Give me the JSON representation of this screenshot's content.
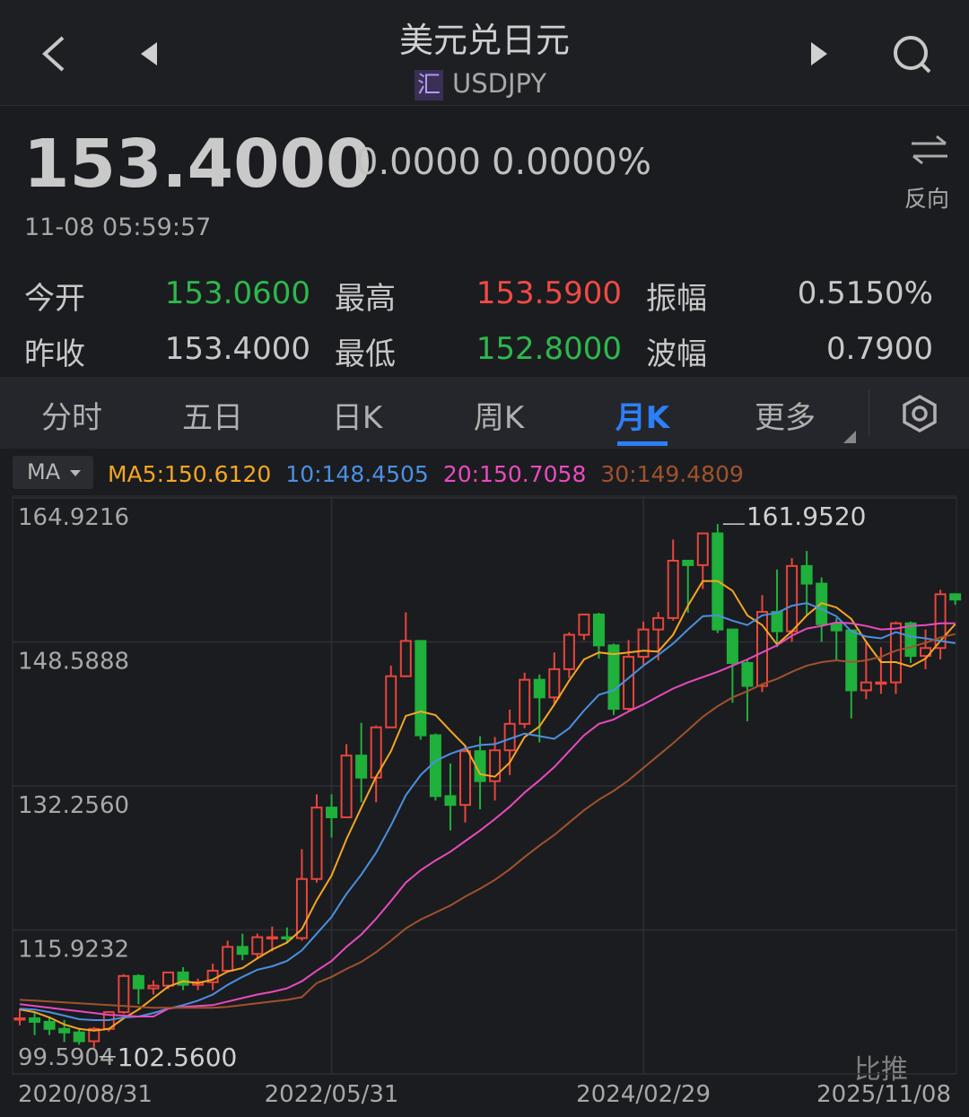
{
  "header": {
    "title": "美元兑日元",
    "badge": "汇",
    "symbol": "USDJPY"
  },
  "quote": {
    "price": "153.4000",
    "change": "0.0000",
    "change_pct": "0.0000%",
    "time": "11-08 05:59:57",
    "reverse": "反向"
  },
  "stats": [
    {
      "label": "今开",
      "value": "153.0600"
    },
    {
      "label": "最高",
      "value": "153.5900"
    },
    {
      "label": "振幅",
      "value": "0.5150%"
    },
    {
      "label": "昨收",
      "value": "153.4000"
    },
    {
      "label": "最低",
      "value": "152.8000"
    },
    {
      "label": "波幅",
      "value": "0.7900"
    }
  ],
  "tabs": [
    "分时",
    "五日",
    "日K",
    "周K",
    "月K",
    "更多"
  ],
  "watermark": "比推",
  "chart_data": {
    "type": "candlestick",
    "indicator": "MA",
    "categories": [
      "2020/08/31",
      null,
      null,
      null,
      null,
      null,
      null,
      null,
      null,
      null,
      null,
      null,
      null,
      null,
      null,
      null,
      null,
      null,
      null,
      null,
      null,
      "2022/05/31",
      null,
      null,
      null,
      null,
      null,
      null,
      null,
      null,
      null,
      null,
      null,
      null,
      null,
      null,
      null,
      null,
      null,
      null,
      null,
      null,
      "2024/02/29",
      null,
      null,
      null,
      null,
      null,
      null,
      null,
      null,
      null,
      null,
      null,
      null,
      null,
      null,
      null,
      null,
      null,
      null,
      null,
      null,
      "2025/11/08"
    ],
    "open": [
      105.8,
      105.9,
      105.5,
      104.7,
      104.3,
      103.3,
      104.7,
      106.6,
      110.7,
      109.3,
      109.6,
      111.1,
      109.7,
      110.0,
      111.3,
      114.0,
      113.2,
      115.1,
      115.1,
      115.0,
      121.7,
      129.8,
      128.7,
      135.7,
      133.2,
      138.9,
      144.7,
      148.7,
      138.0,
      131.1,
      130.1,
      136.2,
      132.8,
      136.3,
      139.3,
      144.3,
      142.3,
      145.5,
      149.4,
      151.7,
      148.2,
      141.0,
      146.9,
      150.0,
      151.3,
      157.8,
      157.3,
      160.9,
      150.0,
      146.2,
      143.6,
      152.0,
      149.8,
      157.2,
      155.2,
      150.6,
      149.9,
      143.1,
      144.0,
      144.0,
      150.7,
      147.0,
      147.9,
      154.0
    ],
    "high": [
      107.0,
      106.5,
      106.1,
      105.7,
      104.8,
      104.9,
      106.7,
      110.9,
      110.9,
      110.2,
      111.1,
      111.7,
      110.4,
      112.1,
      114.7,
      115.5,
      115.5,
      116.3,
      116.2,
      125.1,
      131.3,
      131.3,
      137.0,
      139.4,
      139.1,
      145.9,
      151.95,
      148.8,
      138.2,
      134.8,
      136.9,
      137.9,
      137.8,
      140.9,
      145.1,
      144.9,
      147.4,
      149.7,
      151.7,
      151.9,
      148.4,
      148.8,
      150.9,
      151.97,
      160.2,
      157.9,
      161.0,
      161.952,
      150.0,
      146.5,
      153.9,
      156.8,
      158.1,
      158.9,
      155.9,
      151.3,
      150.0,
      148.7,
      148.0,
      150.9,
      150.9,
      150.0,
      154.5,
      154.1
    ],
    "low": [
      105.1,
      104.0,
      104.0,
      103.2,
      102.9,
      102.56,
      104.4,
      106.4,
      107.5,
      108.6,
      109.2,
      109.1,
      109.1,
      109.1,
      111.3,
      112.5,
      112.6,
      113.5,
      114.4,
      114.7,
      121.3,
      126.4,
      128.7,
      130.4,
      130.4,
      138.9,
      144.6,
      137.5,
      130.6,
      127.2,
      128.1,
      129.6,
      130.6,
      133.5,
      138.8,
      137.2,
      141.5,
      144.5,
      148.8,
      146.7,
      140.3,
      140.8,
      146.0,
      146.5,
      151.0,
      151.9,
      154.6,
      149.6,
      141.7,
      139.6,
      142.9,
      148.0,
      148.6,
      151.7,
      148.6,
      146.5,
      139.9,
      142.1,
      142.7,
      142.7,
      146.2,
      145.5,
      146.6,
      152.8
    ],
    "close": [
      105.9,
      105.5,
      104.7,
      104.3,
      103.3,
      104.7,
      106.6,
      110.7,
      109.3,
      109.6,
      111.1,
      109.7,
      110.0,
      111.3,
      114.0,
      113.2,
      115.1,
      115.1,
      115.0,
      121.7,
      129.8,
      128.7,
      135.7,
      133.2,
      138.9,
      144.7,
      148.7,
      138.0,
      131.1,
      130.1,
      136.2,
      132.8,
      136.3,
      139.3,
      144.3,
      142.3,
      145.5,
      149.4,
      151.7,
      148.2,
      141.0,
      146.9,
      150.0,
      151.3,
      157.8,
      157.3,
      160.9,
      150.0,
      146.2,
      143.6,
      152.0,
      149.8,
      157.2,
      155.2,
      150.6,
      149.9,
      143.1,
      144.0,
      144.0,
      150.7,
      147.0,
      147.9,
      154.0,
      153.4
    ],
    "up_color": "#e8453c",
    "down_color": "#1fb13b",
    "series": [
      {
        "name": "MA5:150.6120",
        "color": "#f5a623",
        "values": [
          106.9,
          106.6,
          106.0,
          105.2,
          104.7,
          104.5,
          104.7,
          105.9,
          106.9,
          108.2,
          109.5,
          110.1,
          109.9,
          110.3,
          111.2,
          111.6,
          112.7,
          113.7,
          114.5,
          116.0,
          119.3,
          122.1,
          126.2,
          129.8,
          133.3,
          136.2,
          140.2,
          140.7,
          140.3,
          138.5,
          136.8,
          133.6,
          133.3,
          134.9,
          137.8,
          139.0,
          141.5,
          144.2,
          146.6,
          147.4,
          147.2,
          147.4,
          147.6,
          147.5,
          149.4,
          152.7,
          155.5,
          155.5,
          154.4,
          151.6,
          150.5,
          148.3,
          149.8,
          151.6,
          153.0,
          152.5,
          151.2,
          148.6,
          146.3,
          146.3,
          145.8,
          146.7,
          148.7,
          150.612
        ]
      },
      {
        "name": "10:148.4505",
        "color": "#4a90e2",
        "values": [
          107.0,
          106.9,
          106.6,
          106.2,
          105.8,
          105.7,
          105.7,
          106.0,
          106.1,
          106.5,
          107.0,
          107.4,
          107.9,
          108.6,
          109.7,
          110.6,
          111.4,
          111.8,
          112.4,
          113.6,
          115.5,
          117.4,
          120.0,
          122.2,
          124.7,
          127.8,
          131.2,
          133.5,
          135.1,
          135.9,
          136.5,
          136.9,
          137.0,
          137.6,
          138.2,
          137.9,
          137.6,
          138.8,
          140.8,
          142.6,
          143.1,
          144.5,
          145.9,
          147.1,
          148.4,
          150.0,
          151.5,
          151.6,
          151.0,
          150.5,
          151.6,
          151.9,
          152.7,
          153.0,
          152.3,
          151.5,
          149.8,
          149.2,
          149.0,
          149.7,
          149.2,
          149.0,
          148.7,
          148.4505
        ]
      },
      {
        "name": "20:150.7058",
        "color": "#e84bbf",
        "values": [
          107.5,
          107.3,
          107.1,
          106.9,
          106.7,
          106.5,
          106.3,
          106.2,
          106.1,
          106.1,
          107.0,
          107.2,
          107.3,
          107.4,
          107.8,
          108.2,
          108.6,
          108.9,
          109.3,
          110.1,
          111.3,
          112.4,
          114.0,
          115.4,
          117.2,
          119.2,
          121.3,
          122.7,
          123.8,
          124.8,
          126.0,
          127.2,
          128.5,
          129.9,
          131.5,
          132.9,
          134.4,
          136.2,
          138.0,
          139.3,
          139.8,
          140.7,
          141.5,
          142.4,
          143.3,
          144.0,
          144.6,
          145.2,
          145.9,
          146.6,
          147.4,
          148.2,
          149.3,
          150.1,
          150.4,
          150.8,
          150.7,
          150.4,
          150.0,
          150.1,
          150.4,
          150.5,
          150.7,
          150.7058
        ]
      },
      {
        "name": "30:149.4809",
        "color": "#a0522d",
        "values": [
          108.0,
          107.9,
          107.8,
          107.7,
          107.6,
          107.5,
          107.4,
          107.3,
          107.2,
          107.1,
          107.1,
          107.1,
          107.1,
          107.1,
          107.2,
          107.4,
          107.6,
          107.8,
          108.0,
          108.3,
          109.9,
          110.6,
          111.5,
          112.3,
          113.4,
          114.7,
          116.1,
          117.1,
          117.9,
          118.7,
          119.7,
          120.6,
          121.6,
          122.8,
          124.2,
          125.5,
          126.7,
          128.1,
          129.5,
          130.7,
          131.7,
          132.9,
          134.3,
          135.7,
          137.1,
          138.6,
          140.1,
          141.3,
          142.3,
          143.0,
          143.8,
          144.4,
          145.2,
          145.9,
          146.3,
          146.5,
          146.3,
          146.5,
          146.9,
          147.6,
          148.0,
          148.5,
          149.1,
          149.4809
        ]
      }
    ],
    "annotations": [
      {
        "value": 161.952,
        "label": "161.9520"
      },
      {
        "value": 102.56,
        "label": "102.5600"
      }
    ],
    "ylim": [
      99.5904,
      164.9216
    ],
    "yticks": [
      164.9216,
      148.5888,
      {
        "value": 132.256,
        "label": "132.2560"
      },
      115.9232,
      99.5904
    ],
    "grid": true
  }
}
